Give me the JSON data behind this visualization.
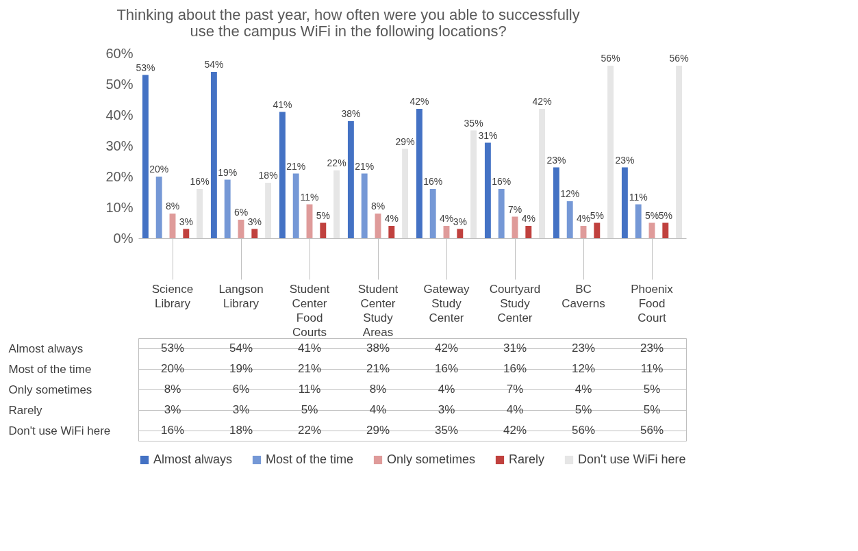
{
  "chart_data": {
    "type": "bar",
    "title": "Thinking about the past year, how often were you able to successfully use the campus WiFi in the following locations?",
    "categories": [
      "Science Library",
      "Langson Library",
      "Student Center Food Courts",
      "Student Center Study Areas",
      "Gateway Study Center",
      "Courtyard Study Center",
      "BC Caverns",
      "Phoenix Food Court"
    ],
    "series": [
      {
        "name": "Almost always",
        "color": "#4472c4",
        "values": [
          53,
          54,
          41,
          38,
          42,
          31,
          23,
          23
        ],
        "value_labels": [
          "53%",
          "54%",
          "41%",
          "38%",
          "42%",
          "31%",
          "23%",
          "23%"
        ]
      },
      {
        "name": "Most of the time",
        "color": "#7598d6",
        "values": [
          20,
          19,
          21,
          21,
          16,
          16,
          12,
          11
        ],
        "value_labels": [
          "20%",
          "19%",
          "21%",
          "21%",
          "16%",
          "16%",
          "12%",
          "11%"
        ]
      },
      {
        "name": "Only sometimes",
        "color": "#df9b9a",
        "values": [
          8,
          6,
          11,
          8,
          4,
          7,
          4,
          5
        ],
        "value_labels": [
          "8%",
          "6%",
          "11%",
          "8%",
          "4%",
          "7%",
          "4%",
          "5%"
        ]
      },
      {
        "name": "Rarely",
        "color": "#c0413e",
        "values": [
          3,
          3,
          5,
          4,
          3,
          4,
          5,
          5
        ],
        "value_labels": [
          "3%",
          "3%",
          "5%",
          "4%",
          "3%",
          "4%",
          "5%",
          "5%"
        ]
      },
      {
        "name": "Don't use WiFi here",
        "color": "#e6e6e6",
        "values": [
          16,
          18,
          22,
          29,
          35,
          42,
          56,
          56
        ],
        "value_labels": [
          "16%",
          "18%",
          "22%",
          "29%",
          "35%",
          "42%",
          "56%",
          "56%"
        ]
      }
    ],
    "ylim": [
      0,
      60
    ],
    "yticks": [
      {
        "value": 0,
        "label": "0%"
      },
      {
        "value": 10,
        "label": "10%"
      },
      {
        "value": 20,
        "label": "20%"
      },
      {
        "value": 30,
        "label": "30%"
      },
      {
        "value": 40,
        "label": "40%"
      },
      {
        "value": 50,
        "label": "50%"
      },
      {
        "value": 60,
        "label": "60%"
      }
    ],
    "grid": false,
    "legend": "bottom"
  }
}
